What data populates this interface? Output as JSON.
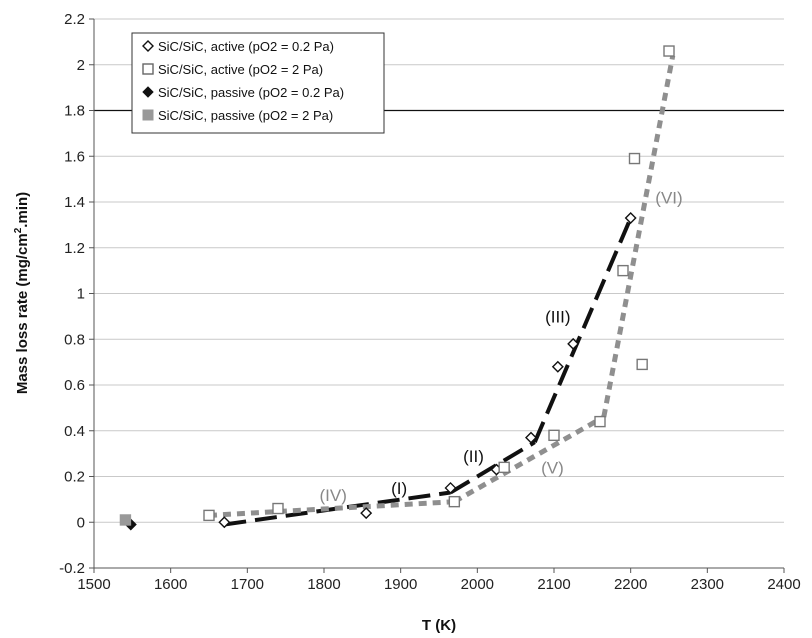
{
  "chart_data": {
    "type": "scatter",
    "xlabel": "T (K)",
    "ylabel_main": "Mass loss rate (mg/cm",
    "ylabel_sup": "2",
    "ylabel_end": ".min)",
    "xlim": [
      1500,
      2400
    ],
    "ylim": [
      -0.2,
      2.2
    ],
    "x_ticks": [
      1500,
      1600,
      1700,
      1800,
      1900,
      2000,
      2100,
      2200,
      2300,
      2400
    ],
    "y_ticks": [
      -0.2,
      0,
      0.2,
      0.4,
      0.6,
      0.8,
      1,
      1.2,
      1.4,
      1.6,
      1.8,
      2,
      2.2
    ],
    "y_tick_labels": [
      "-0.2",
      "0",
      "0.2",
      "0.4",
      "0.6",
      "0.8",
      "1",
      "1.2",
      "1.4",
      "1.6",
      "1.8",
      "2",
      "2.2"
    ],
    "gridlines": "horizontal",
    "highlight_gridline_y": 1.8,
    "legend_position": "top-left",
    "series": [
      {
        "name": "SiC/SiC, active (pO2 = 0.2 Pa)",
        "marker": "diamond-open",
        "color": "#111111",
        "points": [
          [
            1670,
            0.0
          ],
          [
            1855,
            0.04
          ],
          [
            1965,
            0.15
          ],
          [
            2025,
            0.23
          ],
          [
            2070,
            0.37
          ],
          [
            2105,
            0.68
          ],
          [
            2125,
            0.78
          ],
          [
            2200,
            1.33
          ]
        ]
      },
      {
        "name": "SiC/SiC, active (pO2 = 2 Pa)",
        "marker": "square-open",
        "color": "#777777",
        "points": [
          [
            1650,
            0.03
          ],
          [
            1740,
            0.06
          ],
          [
            1970,
            0.09
          ],
          [
            2035,
            0.24
          ],
          [
            2100,
            0.38
          ],
          [
            2160,
            0.44
          ],
          [
            2190,
            1.1
          ],
          [
            2205,
            1.59
          ],
          [
            2215,
            0.69
          ],
          [
            2250,
            2.06
          ]
        ]
      },
      {
        "name": "SiC/SiC, passive (pO2 = 0.2 Pa)",
        "marker": "diamond-filled",
        "color": "#111111",
        "points": [
          [
            1548,
            -0.01
          ]
        ]
      },
      {
        "name": "SiC/SiC, passive (pO2 = 2 Pa)",
        "marker": "square-filled",
        "color": "#999999",
        "points": [
          [
            1541,
            0.01
          ]
        ]
      }
    ],
    "fit_lines": [
      {
        "style": "black-dashed",
        "points": [
          [
            1670,
            -0.01
          ],
          [
            1965,
            0.13
          ]
        ]
      },
      {
        "style": "black-dashed",
        "points": [
          [
            1965,
            0.13
          ],
          [
            2075,
            0.35
          ]
        ]
      },
      {
        "style": "black-dashed",
        "points": [
          [
            2075,
            0.35
          ],
          [
            2200,
            1.33
          ]
        ]
      },
      {
        "style": "gray-dotted",
        "points": [
          [
            1650,
            0.03
          ],
          [
            1970,
            0.09
          ]
        ]
      },
      {
        "style": "gray-dotted",
        "points": [
          [
            1970,
            0.09
          ],
          [
            2165,
            0.46
          ]
        ]
      },
      {
        "style": "gray-dotted",
        "points": [
          [
            2165,
            0.46
          ],
          [
            2255,
            2.04
          ]
        ]
      }
    ],
    "annotations": [
      {
        "text": "(I)",
        "x": 1898,
        "y": 0.15,
        "color": "#111111"
      },
      {
        "text": "(II)",
        "x": 1995,
        "y": 0.29,
        "color": "#111111"
      },
      {
        "text": "(III)",
        "x": 2105,
        "y": 0.9,
        "color": "#111111"
      },
      {
        "text": "(IV)",
        "x": 1812,
        "y": 0.12,
        "color": "#888888"
      },
      {
        "text": "(V)",
        "x": 2098,
        "y": 0.24,
        "color": "#888888"
      },
      {
        "text": "(VI)",
        "x": 2250,
        "y": 1.42,
        "color": "#888888"
      }
    ]
  }
}
